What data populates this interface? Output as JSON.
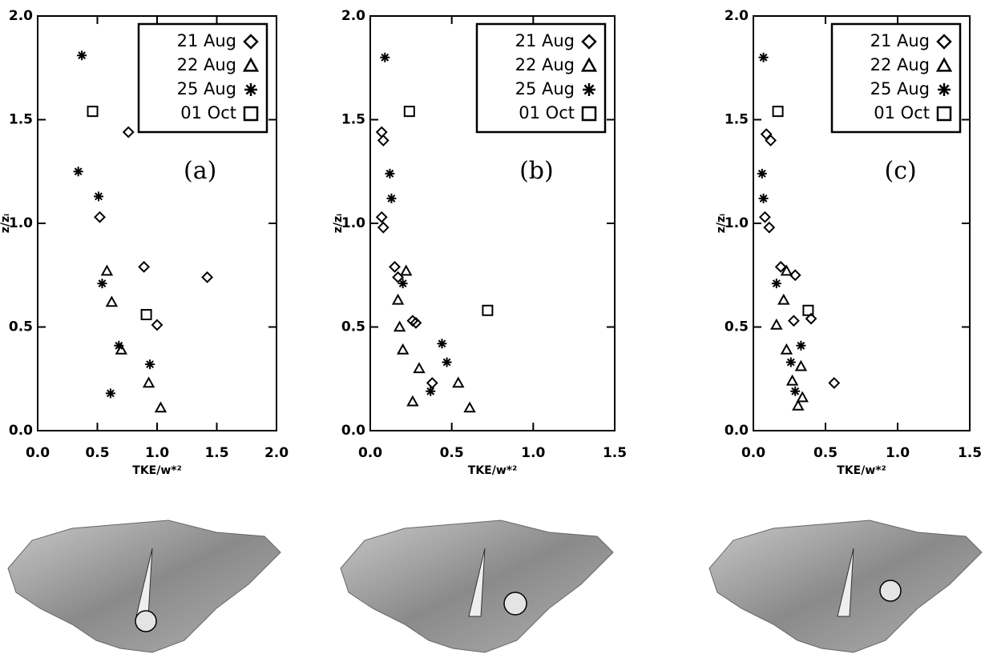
{
  "chart_data": [
    {
      "type": "scatter",
      "panel_label": "(a)",
      "xlabel": "TKE/w*²",
      "ylabel": "z/zᵢ",
      "xlim": [
        0,
        2
      ],
      "ylim": [
        0,
        2
      ],
      "xticks": [
        {
          "value": 0,
          "label": "0.0"
        },
        {
          "value": 0.5,
          "label": "0.5"
        },
        {
          "value": 1,
          "label": "1.0"
        },
        {
          "value": 1.5,
          "label": "1.5"
        },
        {
          "value": 2,
          "label": "2.0"
        }
      ],
      "yticks": [
        {
          "value": 0,
          "label": "0.0"
        },
        {
          "value": 0.5,
          "label": "0.5"
        },
        {
          "value": 1,
          "label": "1.0"
        },
        {
          "value": 1.5,
          "label": "1.5"
        },
        {
          "value": 2,
          "label": "2.0"
        }
      ],
      "series": [
        {
          "name": "21 Aug",
          "marker": "diamond",
          "color": "#000000",
          "x": [
            0.76,
            0.52,
            0.89,
            1.42,
            1.0
          ],
          "values": [
            1.44,
            1.03,
            0.79,
            0.74,
            0.51
          ]
        },
        {
          "name": "22 Aug",
          "marker": "triangle",
          "color": "#000000",
          "x": [
            0.58,
            0.62,
            0.7,
            0.93,
            1.03
          ],
          "values": [
            0.77,
            0.62,
            0.39,
            0.23,
            0.11
          ]
        },
        {
          "name": "25 Aug",
          "marker": "asterisk",
          "color": "#000000",
          "x": [
            0.37,
            0.34,
            0.51,
            0.54,
            0.68,
            0.94,
            0.61
          ],
          "values": [
            1.81,
            1.25,
            1.13,
            0.71,
            0.41,
            0.32,
            0.18
          ]
        },
        {
          "name": "01 Oct",
          "marker": "square",
          "color": "#000000",
          "x": [
            0.46,
            0.91
          ],
          "values": [
            1.54,
            0.56
          ]
        }
      ]
    },
    {
      "type": "scatter",
      "panel_label": "(b)",
      "xlabel": "TKE/w*²",
      "ylabel": "z/zᵢ",
      "xlim": [
        0,
        1.5
      ],
      "ylim": [
        0,
        2
      ],
      "xticks": [
        {
          "value": 0,
          "label": "0.0"
        },
        {
          "value": 0.5,
          "label": "0.5"
        },
        {
          "value": 1,
          "label": "1.0"
        },
        {
          "value": 1.5,
          "label": "1.5"
        }
      ],
      "yticks": [
        {
          "value": 0,
          "label": "0.0"
        },
        {
          "value": 0.5,
          "label": "0.5"
        },
        {
          "value": 1,
          "label": "1.0"
        },
        {
          "value": 1.5,
          "label": "1.5"
        },
        {
          "value": 2,
          "label": "2.0"
        }
      ],
      "series": [
        {
          "name": "21 Aug",
          "marker": "diamond",
          "color": "#000000",
          "x": [
            0.07,
            0.08,
            0.07,
            0.08,
            0.15,
            0.17,
            0.26,
            0.28,
            0.38
          ],
          "values": [
            1.44,
            1.4,
            1.03,
            0.98,
            0.79,
            0.74,
            0.53,
            0.52,
            0.23
          ]
        },
        {
          "name": "22 Aug",
          "marker": "triangle",
          "color": "#000000",
          "x": [
            0.22,
            0.17,
            0.18,
            0.2,
            0.3,
            0.54,
            0.26,
            0.61
          ],
          "values": [
            0.77,
            0.63,
            0.5,
            0.39,
            0.3,
            0.23,
            0.14,
            0.11
          ]
        },
        {
          "name": "25 Aug",
          "marker": "asterisk",
          "color": "#000000",
          "x": [
            0.09,
            0.12,
            0.13,
            0.2,
            0.44,
            0.47,
            0.37
          ],
          "values": [
            1.8,
            1.24,
            1.12,
            0.71,
            0.42,
            0.33,
            0.19
          ]
        },
        {
          "name": "01 Oct",
          "marker": "square",
          "color": "#000000",
          "x": [
            0.24,
            0.72
          ],
          "values": [
            1.54,
            0.58
          ]
        }
      ]
    },
    {
      "type": "scatter",
      "panel_label": "(c)",
      "xlabel": "TKE/w*²",
      "ylabel": "z/zᵢ",
      "xlim": [
        0,
        1.5
      ],
      "ylim": [
        0,
        2
      ],
      "xticks": [
        {
          "value": 0,
          "label": "0.0"
        },
        {
          "value": 0.5,
          "label": "0.5"
        },
        {
          "value": 1,
          "label": "1.0"
        },
        {
          "value": 1.5,
          "label": "1.5"
        }
      ],
      "yticks": [
        {
          "value": 0,
          "label": "0.0"
        },
        {
          "value": 0.5,
          "label": "0.5"
        },
        {
          "value": 1,
          "label": "1.0"
        },
        {
          "value": 1.5,
          "label": "1.5"
        },
        {
          "value": 2,
          "label": "2.0"
        }
      ],
      "series": [
        {
          "name": "21 Aug",
          "marker": "diamond",
          "color": "#000000",
          "x": [
            0.09,
            0.12,
            0.08,
            0.11,
            0.19,
            0.29,
            0.28,
            0.4,
            0.56
          ],
          "values": [
            1.43,
            1.4,
            1.03,
            0.98,
            0.79,
            0.75,
            0.53,
            0.54,
            0.23
          ]
        },
        {
          "name": "22 Aug",
          "marker": "triangle",
          "color": "#000000",
          "x": [
            0.23,
            0.21,
            0.16,
            0.23,
            0.33,
            0.27,
            0.34,
            0.31
          ],
          "values": [
            0.77,
            0.63,
            0.51,
            0.39,
            0.31,
            0.24,
            0.16,
            0.12
          ]
        },
        {
          "name": "25 Aug",
          "marker": "asterisk",
          "color": "#000000",
          "x": [
            0.07,
            0.06,
            0.07,
            0.16,
            0.33,
            0.26,
            0.29
          ],
          "values": [
            1.8,
            1.24,
            1.12,
            0.71,
            0.41,
            0.33,
            0.19
          ]
        },
        {
          "name": "01 Oct",
          "marker": "square",
          "color": "#000000",
          "x": [
            0.17,
            0.38
          ],
          "values": [
            1.54,
            0.58
          ]
        }
      ]
    }
  ]
}
